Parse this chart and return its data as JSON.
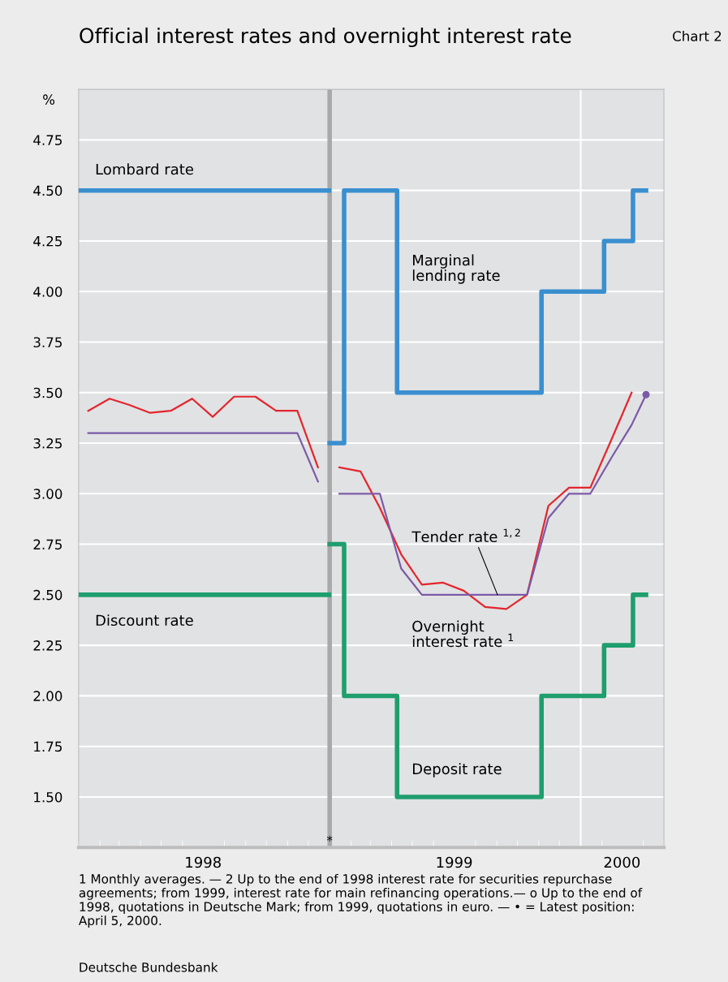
{
  "chart_data": {
    "type": "line",
    "title": "Official interest rates and overnight interest rate",
    "subtitle": "Chart 2",
    "ylabel": "%",
    "series": [
      {
        "type": "step",
        "name": "Lombard rate",
        "color": "#3a8fcf",
        "x": [
          "1998-01-01",
          "1998-12-31"
        ],
        "values": [
          4.5,
          4.5
        ]
      },
      {
        "type": "step",
        "name": "Discount rate",
        "color": "#1f9e6e",
        "x": [
          "1998-01-01",
          "1998-12-31"
        ],
        "values": [
          2.5,
          2.5
        ]
      },
      {
        "type": "step",
        "name": "Marginal\nlending rate",
        "color": "#3a8fcf",
        "x": [
          "1999-01-01",
          "1999-01-22",
          "1999-04-09",
          "1999-11-05",
          "2000-02-04",
          "2000-03-17",
          "2000-04-05"
        ],
        "values": [
          3.25,
          4.5,
          3.5,
          4.0,
          4.25,
          4.5,
          4.5
        ]
      },
      {
        "type": "step",
        "name": "Deposit rate",
        "color": "#1f9e6e",
        "x": [
          "1999-01-01",
          "1999-01-22",
          "1999-04-09",
          "1999-11-05",
          "2000-02-04",
          "2000-03-17",
          "2000-04-05"
        ],
        "values": [
          2.75,
          2.0,
          1.5,
          2.0,
          2.25,
          2.5,
          2.5
        ]
      },
      {
        "name": "Overnight\ninterest rate $^{1}$",
        "color": "#e3262d",
        "x": [
          "1998-01-15",
          "1998-02-15",
          "1998-03-15",
          "1998-04-15",
          "1998-05-15",
          "1998-06-15",
          "1998-07-15",
          "1998-08-15",
          "1998-09-15",
          "1998-10-15",
          "1998-11-15",
          "1998-12-15",
          "1999-01-01",
          "1999-01-15",
          "1999-02-15",
          "1999-03-15",
          "1999-04-15",
          "1999-05-15",
          "1999-06-15",
          "1999-07-15",
          "1999-08-15",
          "1999-09-15",
          "1999-10-15",
          "1999-11-15",
          "1999-12-15",
          "2000-01-15",
          "2000-02-15",
          "2000-03-15"
        ],
        "values": [
          3.41,
          3.47,
          3.44,
          3.4,
          3.41,
          3.47,
          3.38,
          3.48,
          3.48,
          3.41,
          3.41,
          3.13,
          null,
          3.13,
          3.11,
          2.93,
          2.7,
          2.55,
          2.56,
          2.52,
          2.44,
          2.43,
          2.5,
          2.94,
          3.03,
          3.03,
          3.27,
          3.5
        ]
      },
      {
        "color": "#7b5aa6",
        "x": [
          "1998-01-15",
          "1998-11-15",
          "1998-12-15",
          "1999-01-01",
          "1999-01-15",
          "1999-02-15",
          "1999-03-15",
          "1999-04-15",
          "1999-05-15",
          "1999-06-15",
          "1999-07-15",
          "1999-08-15",
          "1999-09-15",
          "1999-10-15",
          "1999-11-15",
          "1999-12-15",
          "2000-01-15",
          "2000-02-15",
          "2000-03-15",
          "2000-04-05"
        ],
        "values": [
          3.3,
          3.3,
          3.06,
          null,
          3.0,
          3.0,
          3.0,
          2.63,
          2.5,
          2.5,
          2.5,
          2.5,
          2.5,
          2.5,
          2.88,
          3.0,
          3.0,
          3.18,
          3.34,
          3.49
        ]
      },
      {
        "type": "scatter",
        "color": "#7b5aa6",
        "marker": "circle",
        "x": [
          "2000-04-05"
        ],
        "values": [
          3.49
        ]
      }
    ],
    "xlim": [
      "1998-01-01",
      "2000-05-01"
    ],
    "xticks": [
      {
        "value": "1998-07-01",
        "label": "1998"
      },
      {
        "value": "1999-07-01",
        "label": "1999"
      },
      {
        "value": "2000-03-01",
        "label": "2000"
      }
    ],
    "ylim": [
      1.25,
      5.0
    ],
    "yticks": [
      {
        "value": 1.5,
        "label": "1.50"
      },
      {
        "value": 1.75,
        "label": "1.75"
      },
      {
        "value": 2.0,
        "label": "2.00"
      },
      {
        "value": 2.25,
        "label": "2.25"
      },
      {
        "value": 2.5,
        "label": "2.50"
      },
      {
        "value": 2.75,
        "label": "2.75"
      },
      {
        "value": 3.0,
        "label": "3.00"
      },
      {
        "value": 3.25,
        "label": "3.25"
      },
      {
        "value": 3.5,
        "label": "3.50"
      },
      {
        "value": 3.75,
        "label": "3.75"
      },
      {
        "value": 4.0,
        "label": "4.00"
      },
      {
        "value": 4.25,
        "label": "4.25"
      },
      {
        "value": 4.5,
        "label": "4.50"
      },
      {
        "value": 4.75,
        "label": "4.75"
      }
    ],
    "grid": "y",
    "ref_lines": [
      {
        "axis": "x",
        "value": "1999-01-01",
        "label": "*",
        "color": "#a9a9a9"
      },
      {
        "axis": "x",
        "value": "2000-01-01",
        "color": "#ffffff"
      }
    ],
    "annotations": [
      {
        "text": "Tender rate $^{1,2}$",
        "x": "1999-09-02",
        "y": 2.5
      },
      "1 Monthly averages. — 2 Up to the end of 1998 interest rate for securities repurchase agreements; from 1999, interest rate for main refinancing operations.— o Up to the end of 1998, quotations in Deutsche Mark; from 1999, quotations in euro. — • = Latest position: April 5, 2000.",
      "Deutsche Bundesbank"
    ]
  }
}
